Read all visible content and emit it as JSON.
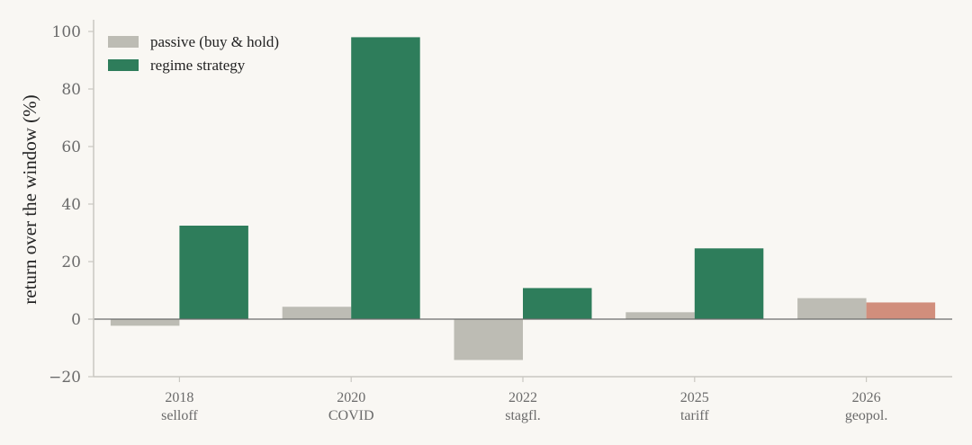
{
  "chart_data": {
    "type": "bar",
    "title": "",
    "xlabel": "",
    "ylabel": "return over the window (%)",
    "ylim": [
      -20,
      100
    ],
    "yticks": [
      -20,
      0,
      20,
      40,
      60,
      80,
      100
    ],
    "ytick_labels": [
      "−20",
      "0",
      "20",
      "40",
      "60",
      "80",
      "100"
    ],
    "grid": false,
    "legend_position": "top-left",
    "categories": [
      {
        "year": "2018",
        "name": "selloff"
      },
      {
        "year": "2020",
        "name": "COVID"
      },
      {
        "year": "2022",
        "name": "stagfl."
      },
      {
        "year": "2025",
        "name": "tariff"
      },
      {
        "year": "2026",
        "name": "geopol."
      }
    ],
    "series": [
      {
        "name": "passive (buy & hold)",
        "color": "#bdbcb4",
        "values": [
          -2.3,
          4.3,
          -14.2,
          2.4,
          7.3
        ]
      },
      {
        "name": "regime strategy",
        "color": "#2e7d5b",
        "values": [
          32.5,
          98.0,
          10.8,
          24.6,
          5.8
        ],
        "bar_colors": [
          "#2e7d5b",
          "#2e7d5b",
          "#2e7d5b",
          "#2e7d5b",
          "#d18e7c"
        ]
      }
    ]
  }
}
